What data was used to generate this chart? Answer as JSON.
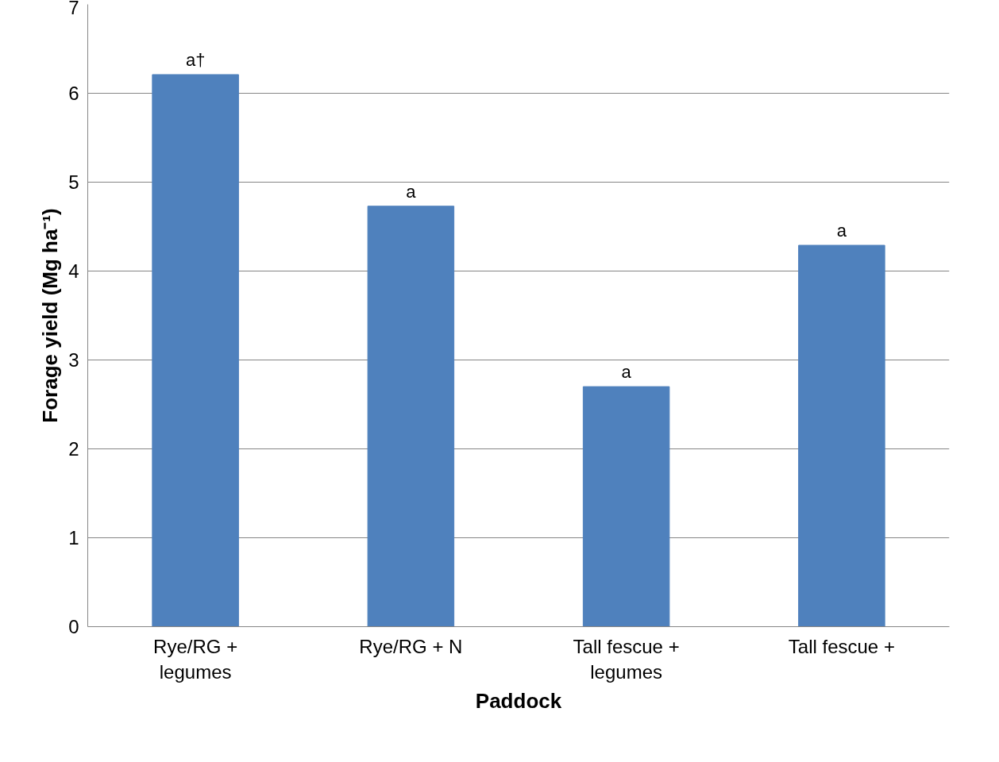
{
  "chart_data": {
    "type": "bar",
    "xlabel": "Paddock",
    "ylabel": "Forage yield (Mg ha⁻¹)",
    "categories": [
      "Rye/RG +\nlegumes",
      "Rye/RG + N",
      "Tall fescue +\nlegumes",
      "Tall fescue +"
    ],
    "values": [
      6.21,
      4.73,
      2.7,
      4.29
    ],
    "color": "#4f81bd",
    "ylim": [
      0,
      7
    ],
    "yticks": [
      0,
      1,
      2,
      3,
      4,
      5,
      6,
      7
    ],
    "grid": "y",
    "annotations": [
      {
        "text": "a†",
        "x": "Rye/RG +\nlegumes",
        "y": 6.21
      },
      {
        "text": "a",
        "x": "Rye/RG + N",
        "y": 4.73
      },
      {
        "text": "a",
        "x": "Tall fescue +\nlegumes",
        "y": 2.7
      },
      {
        "text": "a",
        "x": "Tall fescue +",
        "y": 4.29
      }
    ]
  }
}
